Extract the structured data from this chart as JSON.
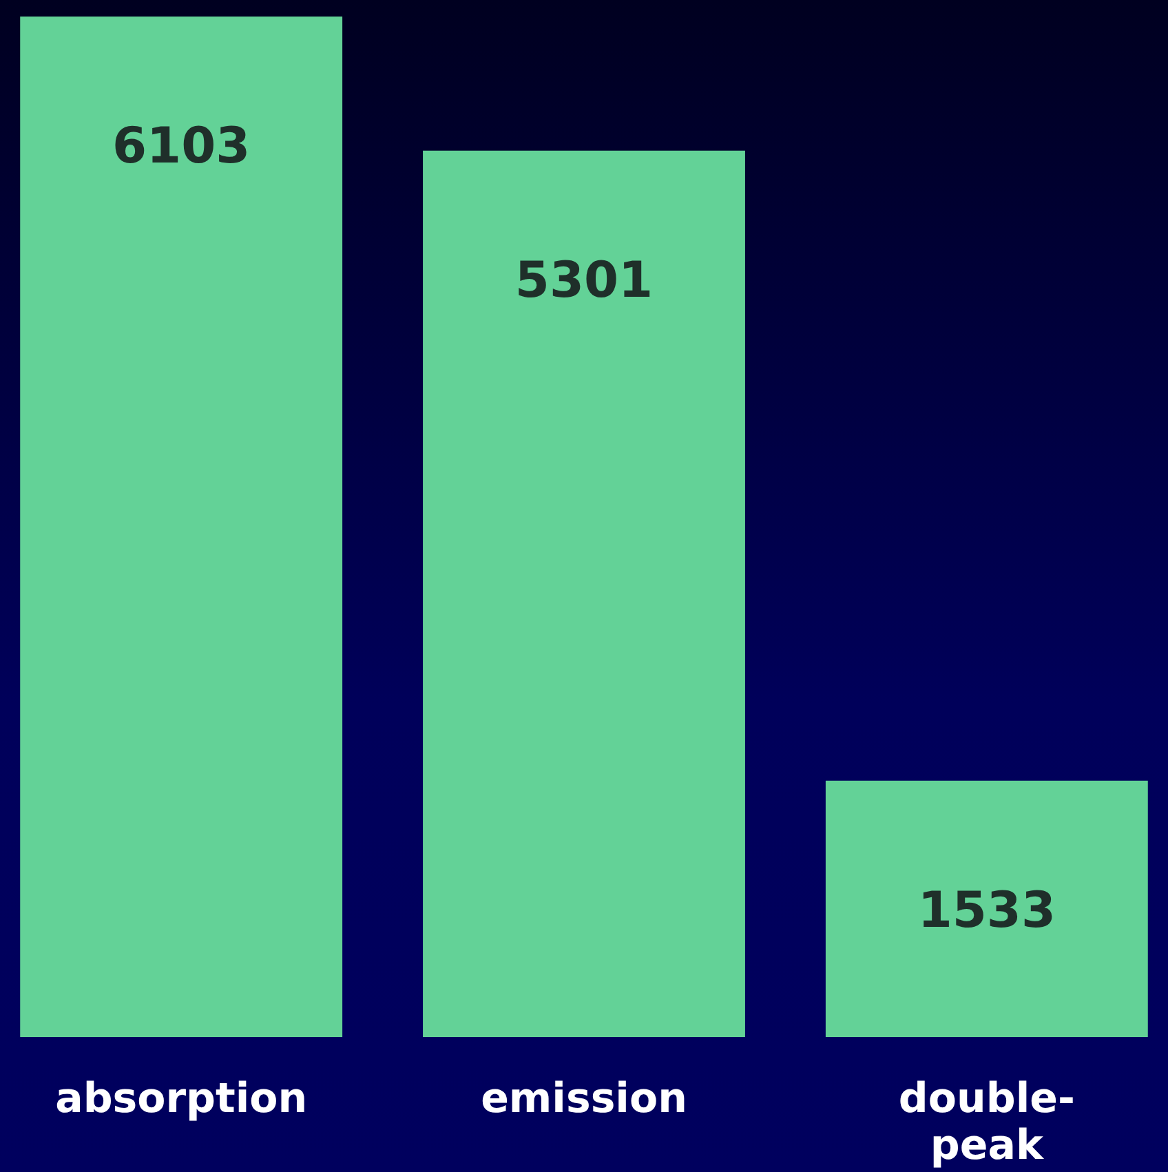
{
  "chart_data": {
    "type": "bar",
    "categories": [
      "absorption",
      "emission",
      "double-peak"
    ],
    "values": [
      6103,
      5301,
      1533
    ],
    "color": "#63d297",
    "data_labels": true
  }
}
